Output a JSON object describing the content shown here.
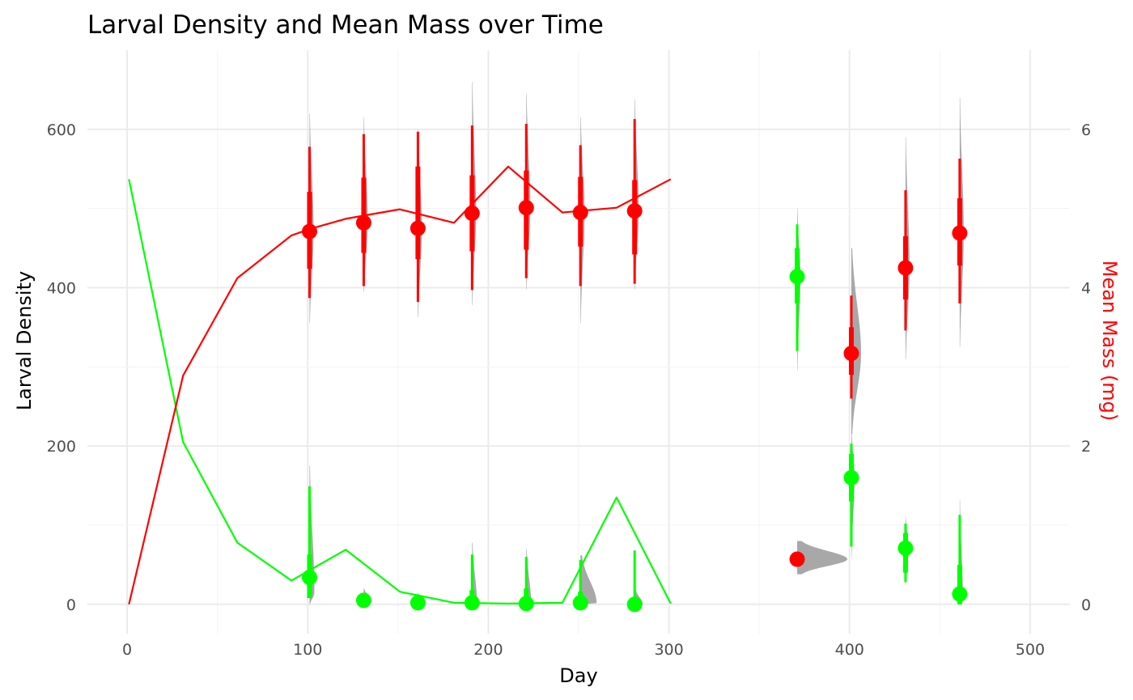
{
  "chart_data": {
    "type": "line",
    "title": "Larval Density and Mean Mass over Time",
    "xlabel": "Day",
    "ylabel": "Larval Density",
    "y2label": "Mean Mass (mg)",
    "xlim": [
      -22,
      522
    ],
    "ylim": [
      -37,
      700
    ],
    "y2lim": [
      -0.37,
      7.0
    ],
    "x_ticks": [
      "0",
      "100",
      "200",
      "300",
      "400",
      "500"
    ],
    "x_tick_values": [
      0,
      100,
      200,
      300,
      400,
      500
    ],
    "y_ticks": [
      "0",
      "200",
      "400",
      "600"
    ],
    "y_tick_values": [
      0,
      200,
      400,
      600
    ],
    "y2_ticks": [
      "0",
      "2",
      "4",
      "6"
    ],
    "y2_tick_values": [
      0,
      2,
      4,
      6
    ],
    "grid": true,
    "colors": {
      "density": "#00ff00",
      "mass": "#ff0000",
      "posterior": "#999999"
    },
    "series": [
      {
        "axis": "left",
        "color": "#00ff00",
        "x": [
          1,
          31,
          61,
          91,
          101,
          121,
          151,
          181,
          211,
          241,
          271,
          301
        ],
        "y": [
          537,
          205,
          78,
          30,
          43,
          69,
          16,
          2,
          1,
          2,
          135,
          1
        ]
      },
      {
        "axis": "right",
        "color": "#ff0000",
        "x": [
          1,
          31,
          61,
          91,
          101,
          121,
          151,
          181,
          211,
          241,
          271,
          301
        ],
        "y": [
          0,
          2.89,
          4.12,
          4.66,
          4.74,
          4.87,
          4.99,
          4.82,
          5.53,
          4.95,
          5.01,
          5.37
        ]
      }
    ],
    "estimates": [
      {
        "axis": "left",
        "color": "#00ff00",
        "x": 101,
        "median": 34,
        "inner": [
          8,
          63
        ],
        "outer": [
          8,
          149
        ],
        "density": {
          "lo": 0,
          "hi": 175,
          "peak": 14,
          "w": 6
        }
      },
      {
        "axis": "left",
        "color": "#00ff00",
        "x": 131,
        "median": 5,
        "inner": [
          1,
          10
        ],
        "outer": [
          0,
          14
        ],
        "density": {
          "lo": 0,
          "hi": 20,
          "peak": 4,
          "w": 8
        }
      },
      {
        "axis": "left",
        "color": "#00ff00",
        "x": 161,
        "median": 2,
        "inner": [
          0,
          6
        ],
        "outer": [
          0,
          10
        ],
        "density": {
          "lo": 0,
          "hi": 14,
          "peak": 1,
          "w": 10
        }
      },
      {
        "axis": "left",
        "color": "#00ff00",
        "x": 191,
        "median": 2,
        "inner": [
          0,
          18
        ],
        "outer": [
          0,
          63
        ],
        "density": {
          "lo": 0,
          "hi": 78,
          "peak": 1,
          "w": 6
        }
      },
      {
        "axis": "left",
        "color": "#00ff00",
        "x": 221,
        "median": 1,
        "inner": [
          0,
          20
        ],
        "outer": [
          0,
          60
        ],
        "density": {
          "lo": 0,
          "hi": 70,
          "peak": 1,
          "w": 6
        }
      },
      {
        "axis": "left",
        "color": "#00ff00",
        "x": 251,
        "median": 2,
        "inner": [
          0,
          16
        ],
        "outer": [
          0,
          56
        ],
        "density": {
          "lo": 0,
          "hi": 62,
          "peak": 1,
          "w": 20
        }
      },
      {
        "axis": "left",
        "color": "#00ff00",
        "x": 281,
        "median": 0,
        "inner": [
          0,
          3
        ],
        "outer": [
          0,
          68
        ],
        "density": {
          "lo": 0,
          "hi": 20,
          "peak": 0,
          "w": 10
        }
      },
      {
        "axis": "left",
        "color": "#00ff00",
        "x": 371,
        "median": 414,
        "inner": [
          380,
          450
        ],
        "outer": [
          320,
          480
        ],
        "density": {
          "lo": 295,
          "hi": 500,
          "peak": 414,
          "w": 4
        }
      },
      {
        "axis": "left",
        "color": "#00ff00",
        "x": 401,
        "median": 160,
        "inner": [
          130,
          190
        ],
        "outer": [
          73,
          203
        ],
        "density": {
          "lo": 60,
          "hi": 220,
          "peak": 160,
          "w": 4
        }
      },
      {
        "axis": "left",
        "color": "#00ff00",
        "x": 431,
        "median": 71,
        "inner": [
          40,
          90
        ],
        "outer": [
          28,
          102
        ],
        "density": {
          "lo": 25,
          "hi": 110,
          "peak": 71,
          "w": 4
        }
      },
      {
        "axis": "left",
        "color": "#00ff00",
        "x": 461,
        "median": 13,
        "inner": [
          0,
          50
        ],
        "outer": [
          0,
          113
        ],
        "density": {
          "lo": 0,
          "hi": 132,
          "peak": 5,
          "w": 4
        }
      },
      {
        "axis": "right",
        "color": "#ff0000",
        "x": 101,
        "median": 4.71,
        "inner": [
          4.24,
          5.21
        ],
        "outer": [
          3.87,
          5.78
        ],
        "density": {
          "lo": 3.55,
          "hi": 6.2,
          "peak": 4.71,
          "w": 5
        }
      },
      {
        "axis": "right",
        "color": "#ff0000",
        "x": 131,
        "median": 4.82,
        "inner": [
          4.44,
          5.39
        ],
        "outer": [
          4.02,
          5.94
        ],
        "density": {
          "lo": 3.95,
          "hi": 6.15,
          "peak": 4.82,
          "w": 5
        }
      },
      {
        "axis": "right",
        "color": "#ff0000",
        "x": 161,
        "median": 4.75,
        "inner": [
          4.36,
          5.53
        ],
        "outer": [
          3.82,
          5.97
        ],
        "density": {
          "lo": 3.63,
          "hi": 6.0,
          "peak": 4.75,
          "w": 5
        }
      },
      {
        "axis": "right",
        "color": "#ff0000",
        "x": 191,
        "median": 4.94,
        "inner": [
          4.46,
          5.42
        ],
        "outer": [
          3.97,
          6.05
        ],
        "density": {
          "lo": 3.78,
          "hi": 6.6,
          "peak": 4.94,
          "w": 5
        }
      },
      {
        "axis": "right",
        "color": "#ff0000",
        "x": 221,
        "median": 5.01,
        "inner": [
          4.48,
          5.48
        ],
        "outer": [
          4.12,
          6.07
        ],
        "density": {
          "lo": 3.98,
          "hi": 6.45,
          "peak": 5.01,
          "w": 5
        }
      },
      {
        "axis": "right",
        "color": "#ff0000",
        "x": 251,
        "median": 4.95,
        "inner": [
          4.52,
          5.4
        ],
        "outer": [
          4.02,
          5.8
        ],
        "density": {
          "lo": 3.55,
          "hi": 6.15,
          "peak": 4.95,
          "w": 5
        }
      },
      {
        "axis": "right",
        "color": "#ff0000",
        "x": 281,
        "median": 4.97,
        "inner": [
          4.42,
          5.36
        ],
        "outer": [
          4.05,
          6.13
        ],
        "density": {
          "lo": 3.98,
          "hi": 6.38,
          "peak": 4.97,
          "w": 5
        }
      },
      {
        "axis": "right",
        "color": "#ff0000",
        "x": 371,
        "median": 0.57,
        "inner": [
          0.57,
          0.57
        ],
        "outer": [
          0.57,
          0.57
        ],
        "density": {
          "lo": 0.38,
          "hi": 0.8,
          "peak": 0.57,
          "w": 62
        }
      },
      {
        "axis": "right",
        "color": "#ff0000",
        "x": 401,
        "median": 3.17,
        "inner": [
          2.9,
          3.5
        ],
        "outer": [
          2.6,
          3.9
        ],
        "density": {
          "lo": 2.15,
          "hi": 4.5,
          "peak": 3.17,
          "w": 12
        }
      },
      {
        "axis": "right",
        "color": "#ff0000",
        "x": 431,
        "median": 4.25,
        "inner": [
          3.85,
          4.65
        ],
        "outer": [
          3.46,
          5.23
        ],
        "density": {
          "lo": 3.1,
          "hi": 5.9,
          "peak": 4.25,
          "w": 5
        }
      },
      {
        "axis": "right",
        "color": "#ff0000",
        "x": 461,
        "median": 4.69,
        "inner": [
          4.28,
          5.13
        ],
        "outer": [
          3.8,
          5.63
        ],
        "density": {
          "lo": 3.25,
          "hi": 6.4,
          "peak": 4.69,
          "w": 5
        }
      }
    ]
  }
}
